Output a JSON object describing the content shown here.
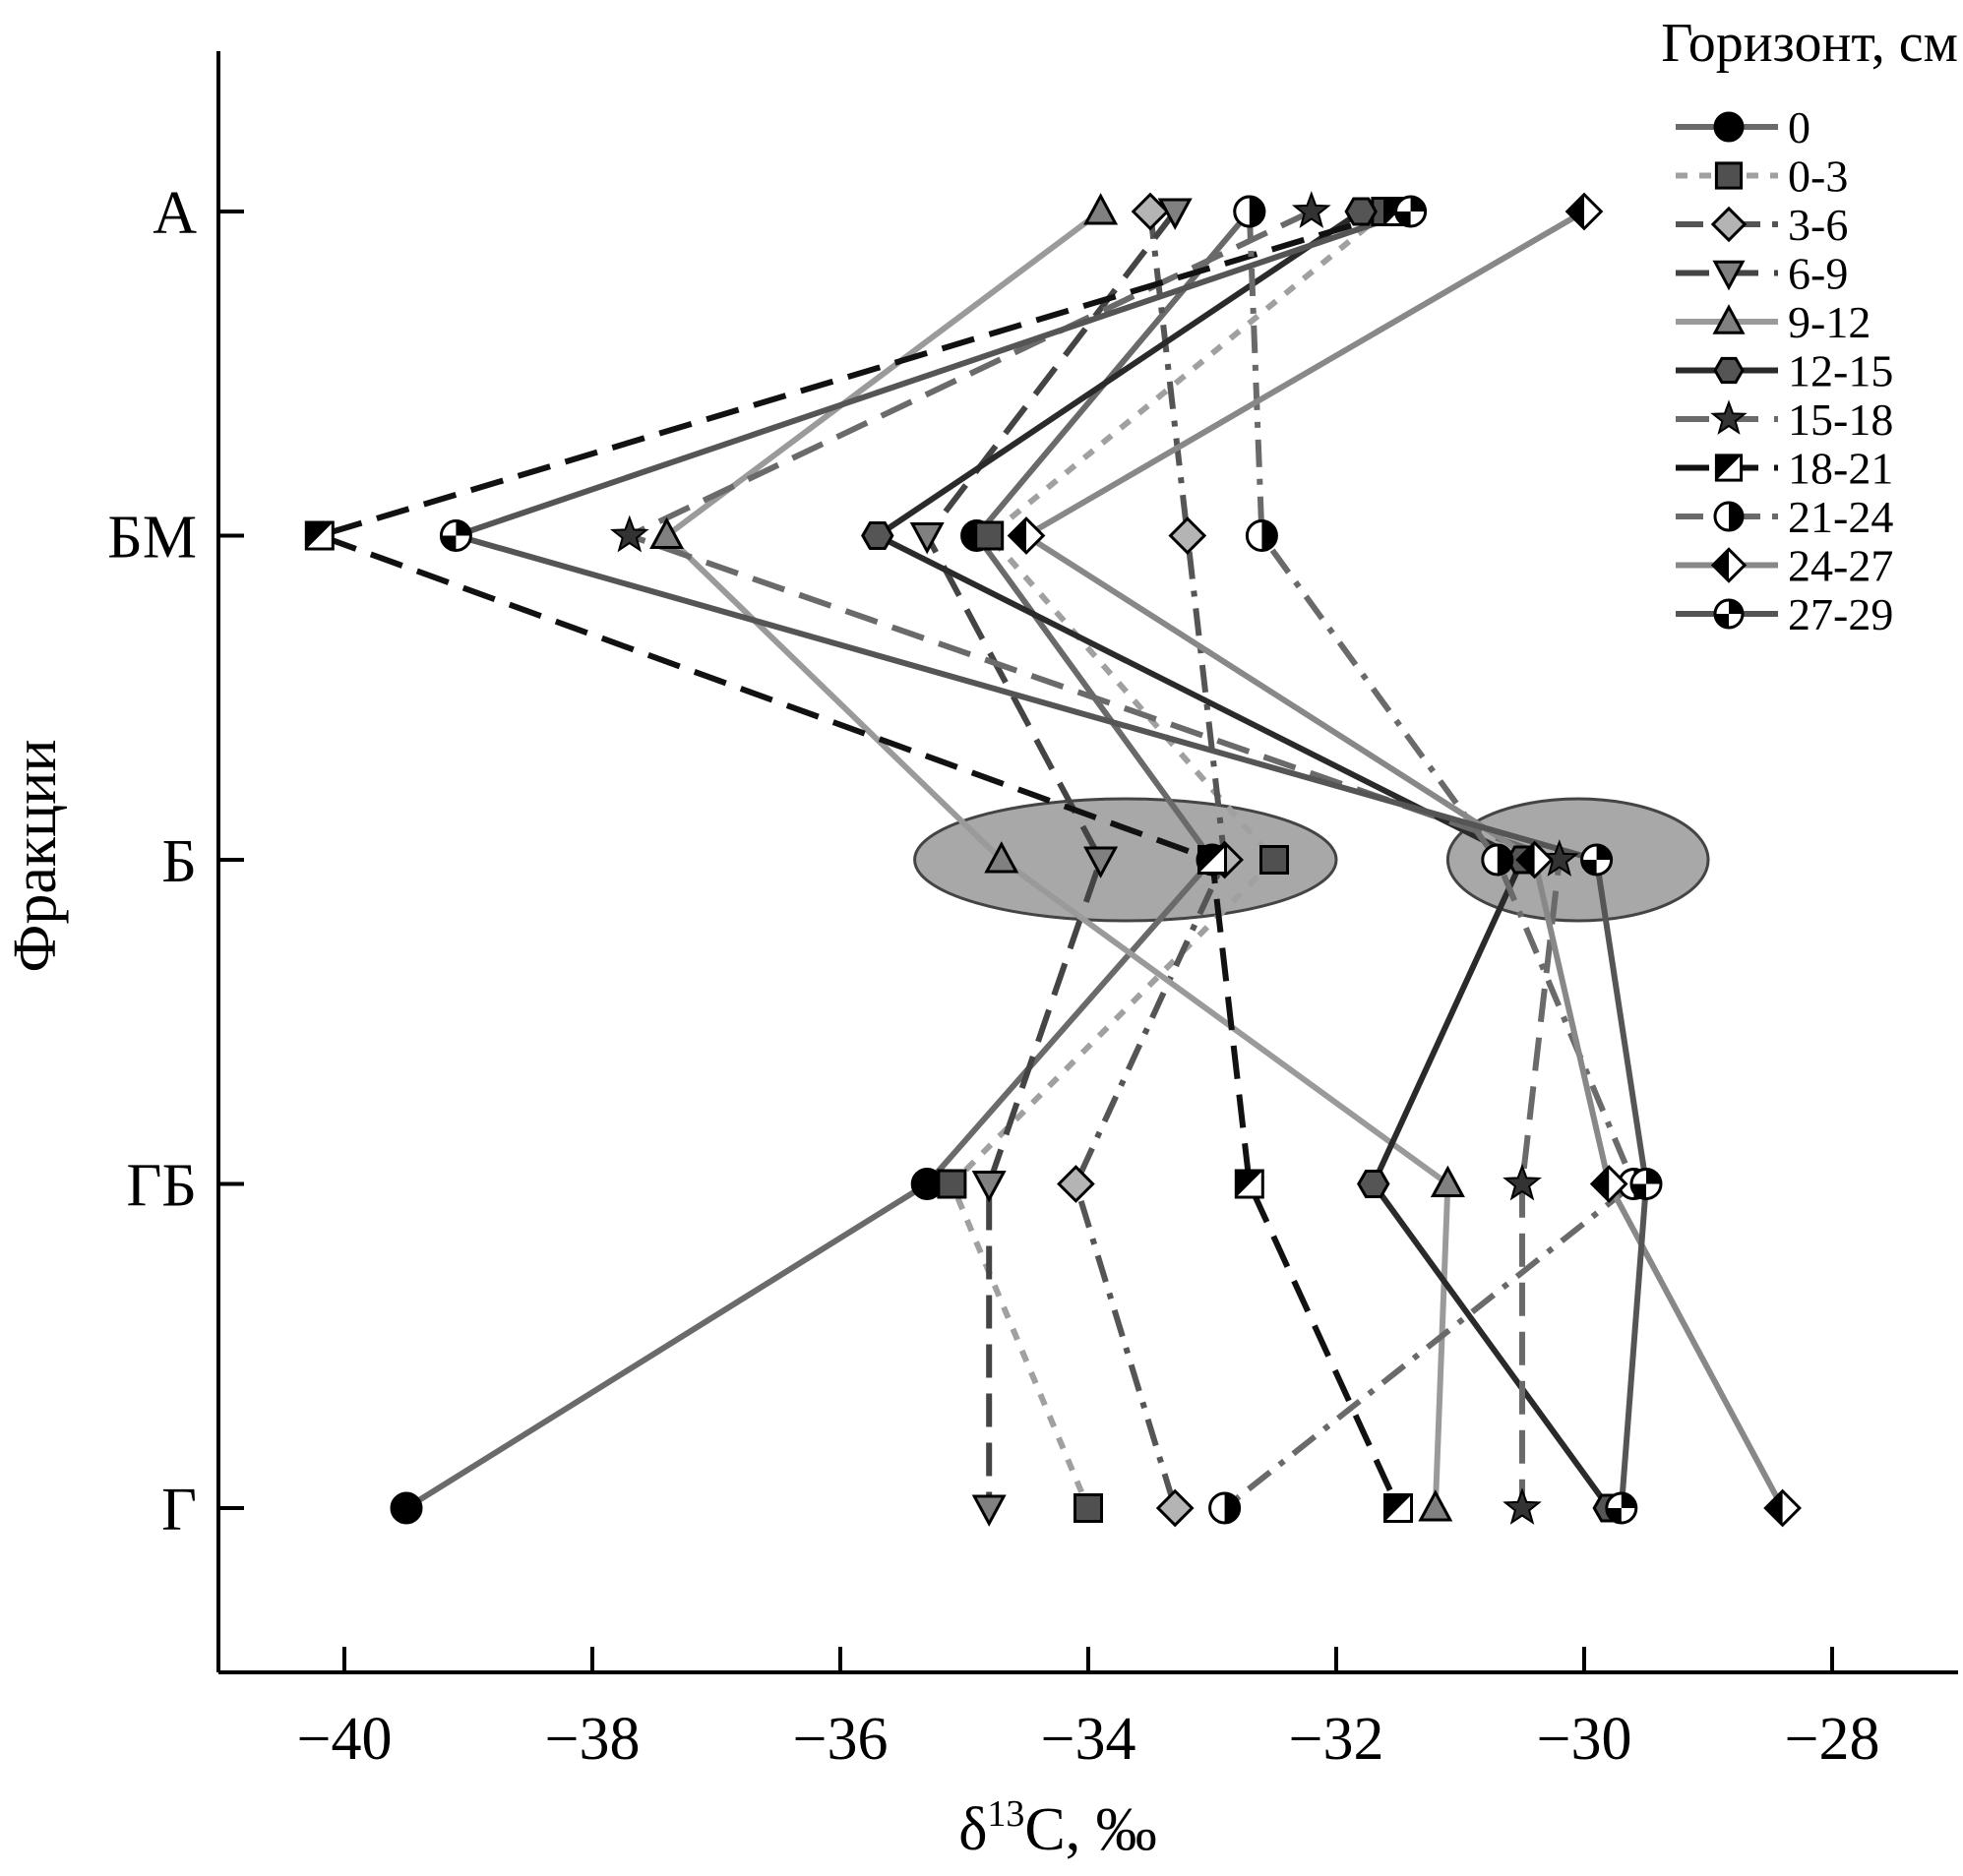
{
  "chart_data": {
    "type": "line",
    "ylabel": "Фракции",
    "categories": [
      "А",
      "БМ",
      "Б",
      "ГБ",
      "Г"
    ],
    "xlim": [
      -41,
      -27
    ],
    "xticks": [
      -40,
      -38,
      -36,
      -34,
      -32,
      -30,
      -28
    ],
    "xtick_labels": [
      "−40",
      "−38",
      "−36",
      "−34",
      "−32",
      "−30",
      "−28"
    ],
    "xlabel": {
      "prefix": "δ",
      "sup": "13",
      "suffix": "C, ‰"
    },
    "legend": {
      "title": "Горизонт, см",
      "placement": "top-right"
    },
    "grid": false,
    "ellipses": [
      {
        "category": "Б",
        "x_range": [
          -35.4,
          -32.0
        ]
      },
      {
        "category": "Б",
        "x_range": [
          -31.1,
          -29.0
        ]
      }
    ],
    "series": [
      {
        "name": "0",
        "marker": "circle",
        "dash": "solid",
        "color": "#6a6a6a",
        "values": [
          -32.7,
          -34.9,
          -33.0,
          -35.3,
          -39.5
        ]
      },
      {
        "name": "0-3",
        "marker": "square",
        "dash": "dotted",
        "color": "#a0a0a0",
        "values": [
          -31.6,
          -34.8,
          -32.5,
          -35.1,
          -34.0
        ]
      },
      {
        "name": "3-6",
        "marker": "diamond",
        "dash": "dashdot",
        "color": "#555555",
        "values": [
          -33.5,
          -33.2,
          -32.9,
          -34.1,
          -33.3
        ]
      },
      {
        "name": "6-9",
        "marker": "triangle-down",
        "dash": "dashed",
        "color": "#444444",
        "values": [
          -33.3,
          -35.3,
          -33.9,
          -34.8,
          -34.8
        ]
      },
      {
        "name": "9-12",
        "marker": "triangle-up",
        "dash": "solid",
        "color": "#9a9a9a",
        "values": [
          -33.9,
          -37.4,
          -34.7,
          -31.1,
          -31.2
        ]
      },
      {
        "name": "12-15",
        "marker": "hexagon",
        "dash": "solid",
        "color": "#2a2a2a",
        "values": [
          -31.8,
          -35.7,
          -30.5,
          -31.7,
          -29.8
        ]
      },
      {
        "name": "15-18",
        "marker": "star",
        "dash": "dashed",
        "color": "#6a6a6a",
        "values": [
          -32.2,
          -37.7,
          -30.2,
          -30.5,
          -30.5
        ]
      },
      {
        "name": "18-21",
        "marker": "halfsquare",
        "dash": "dashed",
        "color": "#111111",
        "values": [
          -31.5,
          -40.2,
          -33.0,
          -32.7,
          -31.5
        ]
      },
      {
        "name": "21-24",
        "marker": "halfcircle",
        "dash": "dashdot",
        "color": "#6a6a6a",
        "values": [
          -32.7,
          -32.6,
          -30.7,
          -29.6,
          -32.9
        ]
      },
      {
        "name": "24-27",
        "marker": "halfdiamond",
        "dash": "solid",
        "color": "#888888",
        "values": [
          -30.0,
          -34.5,
          -30.4,
          -29.8,
          -28.4
        ]
      },
      {
        "name": "27-29",
        "marker": "quartercircle",
        "dash": "solid",
        "color": "#555555",
        "values": [
          -31.4,
          -39.1,
          -29.9,
          -29.5,
          -29.7
        ]
      }
    ]
  }
}
